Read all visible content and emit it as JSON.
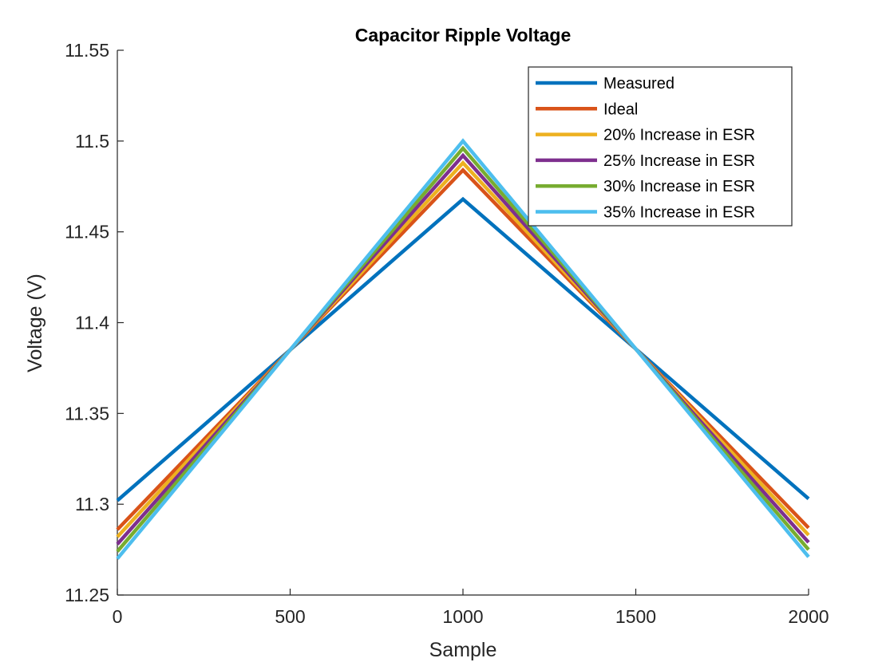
{
  "chart_data": {
    "type": "line",
    "title": "Capacitor Ripple Voltage",
    "xlabel": "Sample",
    "ylabel": "Voltage (V)",
    "xlim": [
      0,
      2000
    ],
    "ylim": [
      11.25,
      11.55
    ],
    "xticks": [
      0,
      500,
      1000,
      1500,
      2000
    ],
    "xtick_labels": [
      "0",
      "500",
      "1000",
      "1500",
      "2000"
    ],
    "yticks": [
      11.25,
      11.3,
      11.35,
      11.4,
      11.45,
      11.5,
      11.55
    ],
    "ytick_labels": [
      "11.25",
      "11.3",
      "11.35",
      "11.4",
      "11.45",
      "11.5",
      "11.55"
    ],
    "grid": false,
    "legend_position": "top-right",
    "series": [
      {
        "name": "Measured",
        "color": "#0072BD",
        "x": [
          0,
          1000,
          2000
        ],
        "y": [
          11.302,
          11.468,
          11.303
        ]
      },
      {
        "name": "Ideal",
        "color": "#D95319",
        "x": [
          0,
          1000,
          2000
        ],
        "y": [
          11.286,
          11.484,
          11.287
        ]
      },
      {
        "name": "20% Increase in ESR",
        "color": "#EDB120",
        "x": [
          0,
          1000,
          2000
        ],
        "y": [
          11.282,
          11.488,
          11.283
        ]
      },
      {
        "name": "25% Increase in ESR",
        "color": "#7E2F8E",
        "x": [
          0,
          1000,
          2000
        ],
        "y": [
          11.278,
          11.492,
          11.279
        ]
      },
      {
        "name": "30% Increase in ESR",
        "color": "#77AC30",
        "x": [
          0,
          1000,
          2000
        ],
        "y": [
          11.274,
          11.496,
          11.275
        ]
      },
      {
        "name": "35% Increase in ESR",
        "color": "#4DBEEE",
        "x": [
          0,
          1000,
          2000
        ],
        "y": [
          11.27,
          11.5,
          11.271
        ]
      }
    ]
  }
}
